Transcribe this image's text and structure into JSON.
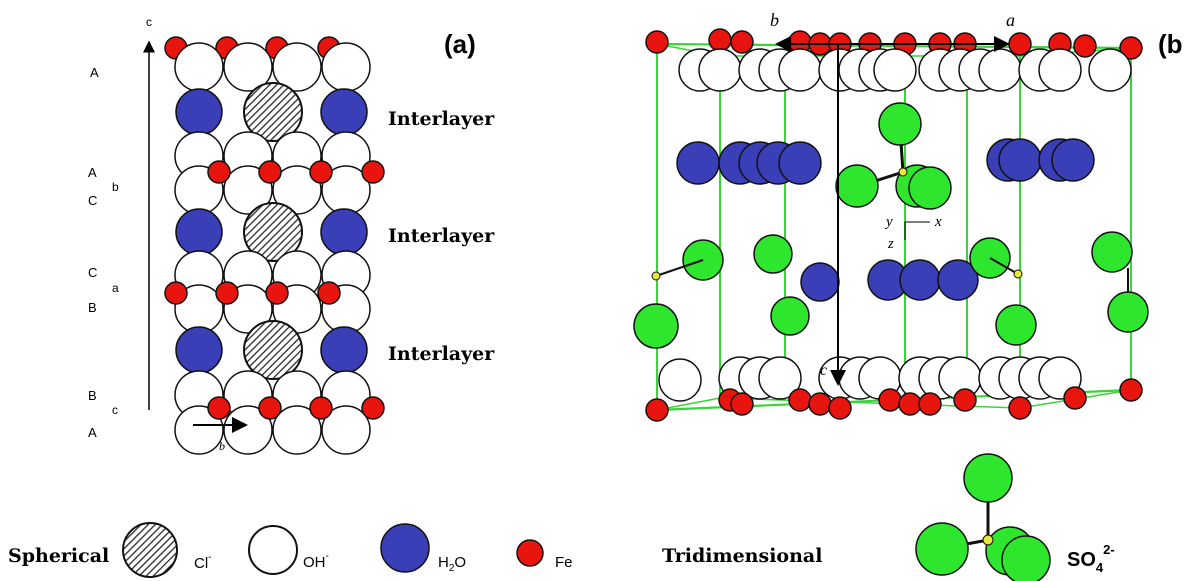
{
  "panel_a": {
    "label": "(a)",
    "axis_c": "c",
    "axis_b": "b",
    "stacking": [
      {
        "text": "A"
      },
      {
        "text": "A"
      },
      {
        "text": "b"
      },
      {
        "text": "C"
      },
      {
        "text": "C"
      },
      {
        "text": "a"
      },
      {
        "text": "B"
      },
      {
        "text": "B"
      },
      {
        "text": "c"
      },
      {
        "text": "A"
      }
    ],
    "interlayer_labels": [
      "Interlayer",
      "Interlayer",
      "Interlayer"
    ]
  },
  "panel_b": {
    "label": "(b",
    "axis_a": "a",
    "axis_b": "b",
    "axis_c": "c",
    "mini_axes": {
      "y": "y",
      "x": "x",
      "z": "z"
    }
  },
  "legend": {
    "spherical": "Spherical",
    "cl": {
      "base": "Cl",
      "sup": "-"
    },
    "oh": {
      "base": "OH",
      "sup": "-"
    },
    "h2o": {
      "pre": "H",
      "sub": "2",
      "post": "O"
    },
    "fe": "Fe",
    "tridimensional": "Tridimensional",
    "so4": {
      "base": "SO",
      "sub": "4",
      "sup": "2-"
    }
  },
  "colors": {
    "fe": "#e8140e",
    "h2o": "#3a3fb8",
    "sulfate": "#2ee62e",
    "frame": "#3ad43a",
    "outline": "#111111",
    "white": "#ffffff"
  }
}
